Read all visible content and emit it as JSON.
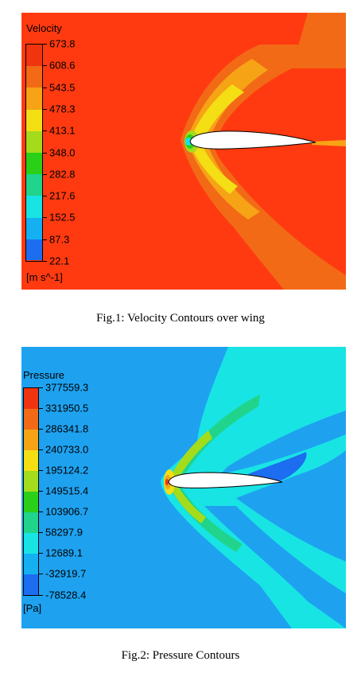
{
  "figures": [
    {
      "id": "velocity",
      "legend_title": "Velocity",
      "unit": "[m s^-1]",
      "levels": [
        "673.8",
        "608.6",
        "543.5",
        "478.3",
        "413.1",
        "348.0",
        "282.8",
        "217.6",
        "152.5",
        "87.3",
        "22.1"
      ],
      "band_colors": [
        "#f03410",
        "#f26a16",
        "#f6a316",
        "#f4de14",
        "#a4dc1c",
        "#2ad018",
        "#20d48c",
        "#18e4e4",
        "#14b0f2",
        "#1d6df0"
      ],
      "background_color": "#ff3a10",
      "caption": "Fig.1: Velocity Contours over wing"
    },
    {
      "id": "pressure",
      "legend_title": "Pressure",
      "unit": "[Pa]",
      "levels": [
        "377559.3",
        "331950.5",
        "286341.8",
        "240733.0",
        "195124.2",
        "149515.4",
        "103906.7",
        "58297.9",
        "12689.1",
        "-32919.7",
        "-78528.4"
      ],
      "band_colors": [
        "#f03410",
        "#f26a16",
        "#f6a316",
        "#f4de14",
        "#a4dc1c",
        "#2ad018",
        "#20d48c",
        "#18e4e4",
        "#14b0f2",
        "#1d6df0"
      ],
      "background_color": "#1ea2f0",
      "caption": "Fig.2: Pressure Contours"
    }
  ]
}
